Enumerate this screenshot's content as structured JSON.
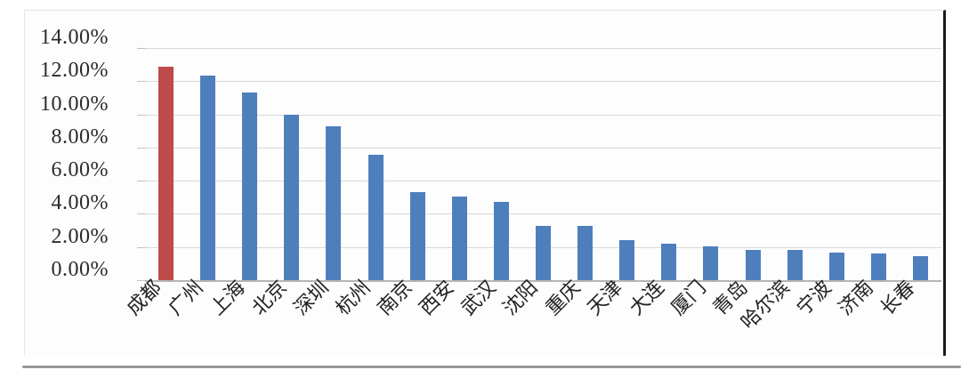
{
  "figure": {
    "background": "#ffffff",
    "card_background": "#fdfdfd",
    "card_dark_edge_color": "#1c1c1c",
    "card_shadow_color": "#979797"
  },
  "colors": {
    "gridline": "#d8d8d8",
    "axis_line": "#b5b5b5",
    "tick": "#c2c2c2",
    "y_label_text": "#2b2b2b",
    "x_label_text": "#222222"
  },
  "chart_data": {
    "type": "bar",
    "title": "",
    "xlabel": "",
    "ylabel": "",
    "categories": [
      "成都",
      "广州",
      "上海",
      "北京",
      "深圳",
      "杭州",
      "南京",
      "西安",
      "武汉",
      "沈阳",
      "重庆",
      "天津",
      "大连",
      "厦门",
      "青岛",
      "哈尔滨",
      "宁波",
      "济南",
      "长春"
    ],
    "values": [
      12.9,
      12.35,
      11.3,
      10.0,
      9.3,
      7.55,
      5.3,
      5.05,
      4.7,
      3.25,
      3.25,
      2.4,
      2.2,
      2.05,
      1.85,
      1.8,
      1.65,
      1.6,
      1.45
    ],
    "value_unit": "%",
    "ylim": [
      0,
      14
    ],
    "y_tick_step": 2,
    "y_tick_labels": [
      "14.00%",
      "12.00%",
      "10.00%",
      "8.00%",
      "6.00%",
      "4.00%",
      "2.00%",
      "0.00%"
    ],
    "grid": true,
    "legend": false,
    "bar_color": "#4e7fbc",
    "highlight_index": 0,
    "highlight_color": "#be4b48",
    "x_label_rotation_deg": -45
  }
}
